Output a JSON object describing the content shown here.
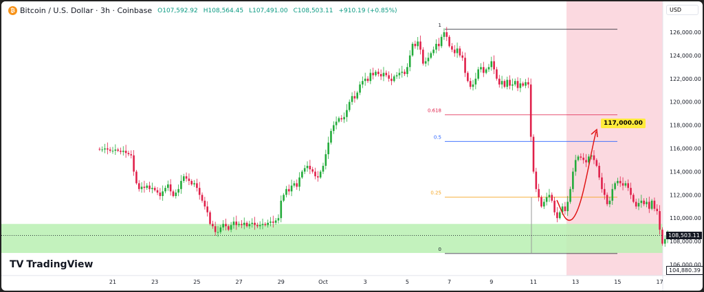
{
  "header": {
    "symbol": "Bitcoin / U.S. Dollar · 3h · Coinbase",
    "open": "O107,592.92",
    "high": "H108,564.45",
    "low": "L107,491.00",
    "close": "C108,503.11",
    "change": "+910.19 (+0.85%)"
  },
  "currency": "USD",
  "logo": "TradingView",
  "price_labels": {
    "last": "108,503.11",
    "marker": "104,880.39"
  },
  "target_label": "117,000.00",
  "colors": {
    "up": "#22ab3a",
    "down": "#e0204a",
    "zone": "#b9f0b2",
    "highlight": "#fbd9e0"
  },
  "chart_data": {
    "type": "candlestick",
    "ylim": [
      105000,
      127500
    ],
    "y_ticks": [
      106000,
      108000,
      110000,
      112000,
      114000,
      116000,
      118000,
      120000,
      122000,
      124000,
      126000
    ],
    "y_tick_labels": [
      "106,000.00",
      "108,000.00",
      "110,000.00",
      "112,000.00",
      "114,000.00",
      "116,000.00",
      "118,000.00",
      "120,000.00",
      "122,000.00",
      "124,000.00",
      "126,000.00"
    ],
    "x_ticks": [
      "21",
      "23",
      "25",
      "27",
      "29",
      "Oct",
      "3",
      "5",
      "7",
      "9",
      "11",
      "13",
      "15",
      "17"
    ],
    "x_tick_days": [
      1,
      3,
      5,
      7,
      9,
      11,
      13,
      15,
      17,
      19,
      21,
      23,
      25,
      27
    ],
    "candle_interval": "3h",
    "first_candle_day_offset": 0.375,
    "closes_k": [
      115.9,
      115.9,
      116.0,
      115.9,
      115.8,
      115.8,
      115.9,
      115.8,
      115.7,
      115.8,
      115.6,
      115.5,
      115.4,
      114.0,
      113.0,
      112.5,
      112.7,
      112.6,
      112.8,
      112.5,
      112.6,
      112.4,
      112.2,
      111.9,
      112.3,
      112.6,
      112.9,
      112.3,
      111.9,
      112.2,
      112.5,
      113.2,
      113.6,
      113.4,
      113.2,
      112.9,
      113.0,
      112.6,
      112.0,
      111.5,
      111.0,
      110.5,
      109.5,
      109.3,
      108.8,
      108.8,
      109.2,
      109.5,
      109.3,
      109.0,
      109.4,
      109.7,
      109.4,
      109.5,
      109.4,
      109.6,
      109.3,
      109.5,
      109.6,
      109.4,
      109.3,
      109.4,
      109.5,
      109.4,
      109.6,
      109.7,
      109.6,
      109.8,
      110.0,
      111.5,
      112.0,
      112.5,
      112.3,
      112.8,
      113.0,
      112.7,
      113.5,
      114.0,
      114.3,
      114.5,
      114.2,
      114.0,
      113.6,
      113.5,
      114.0,
      114.5,
      115.5,
      116.5,
      117.5,
      118.0,
      118.3,
      118.6,
      118.5,
      118.7,
      119.3,
      120.0,
      120.5,
      120.3,
      120.8,
      121.5,
      121.8,
      122.0,
      121.8,
      122.5,
      122.3,
      122.6,
      122.4,
      122.2,
      122.5,
      122.3,
      122.0,
      121.8,
      122.2,
      122.3,
      122.5,
      122.6,
      122.4,
      123.0,
      124.0,
      125.0,
      124.8,
      125.2,
      124.5,
      123.3,
      123.5,
      123.8,
      124.2,
      124.5,
      125.0,
      124.8,
      125.6,
      126.0,
      125.6,
      124.8,
      124.5,
      124.2,
      124.6,
      124.0,
      123.8,
      122.5,
      121.8,
      121.3,
      121.5,
      122.0,
      122.8,
      123.0,
      122.5,
      122.8,
      123.0,
      123.5,
      122.8,
      122.0,
      121.5,
      121.8,
      121.3,
      121.9,
      121.4,
      121.5,
      121.8,
      121.2,
      121.6,
      121.4,
      121.7,
      121.5,
      117.0,
      114.0,
      112.5,
      111.8,
      111.0,
      111.4,
      111.8,
      112.0,
      111.5,
      110.5,
      110.0,
      110.5,
      111.0,
      110.6,
      111.4,
      112.5,
      114.0,
      115.0,
      115.3,
      115.2,
      115.0,
      114.8,
      115.3,
      115.4,
      115.0,
      114.5,
      113.5,
      112.5,
      112.0,
      111.2,
      111.5,
      112.5,
      113.0,
      113.2,
      113.0,
      112.8,
      113.0,
      112.6,
      112.0,
      111.4,
      111.0,
      111.3,
      111.5,
      111.2,
      111.4,
      110.8,
      111.5,
      110.8,
      110.6,
      109.0,
      107.8,
      108.2,
      108.5
    ],
    "fibonacci": [
      {
        "level": "1",
        "price": 126250,
        "color": "#131722"
      },
      {
        "level": "0.618",
        "price": 118900,
        "color": "#e0204a"
      },
      {
        "level": "0.5",
        "price": 116600,
        "color": "#2962ff"
      },
      {
        "level": "0.25",
        "price": 111800,
        "color": "#f5a623"
      },
      {
        "level": "0",
        "price": 106950,
        "color": "#131722"
      }
    ],
    "support_zone": [
      107000,
      109500
    ],
    "last_price": 108503.11
  }
}
